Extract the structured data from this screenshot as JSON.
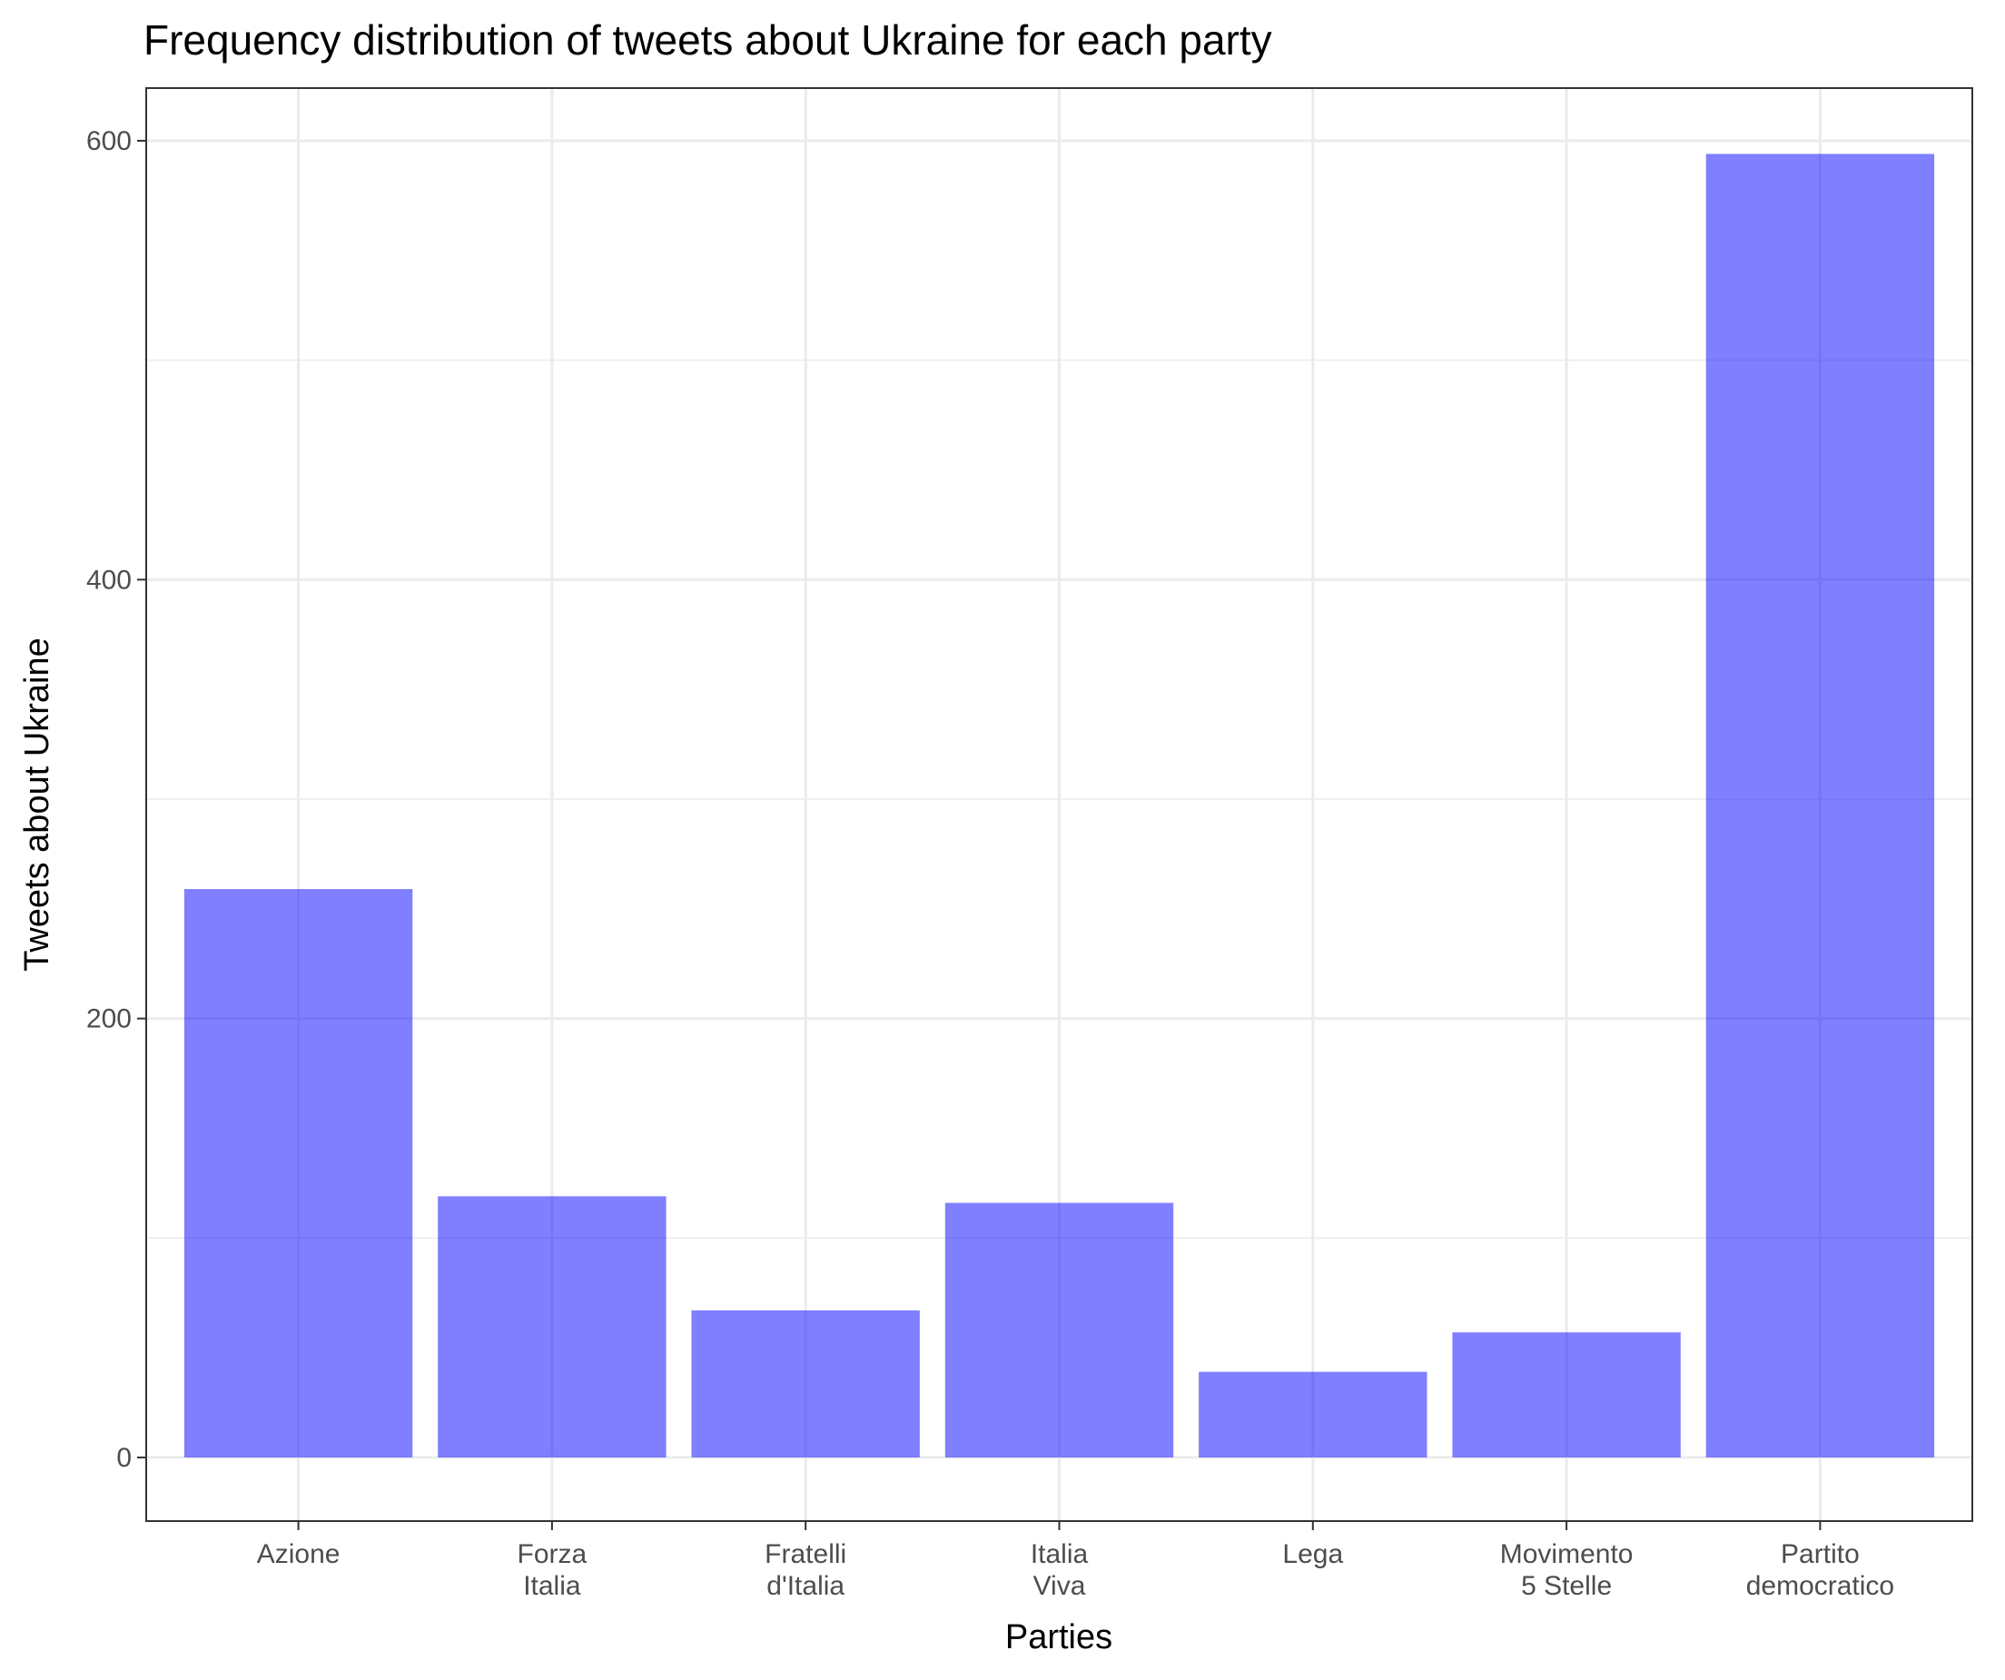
{
  "chart_data": {
    "type": "bar",
    "title": "Frequency distribution of tweets about Ukraine for each party",
    "xlabel": "Parties",
    "ylabel": "Tweets about Ukraine",
    "categories": [
      [
        "Azione"
      ],
      [
        "Forza",
        "Italia"
      ],
      [
        "Fratelli",
        "d'Italia"
      ],
      [
        "Italia",
        "Viva"
      ],
      [
        "Lega"
      ],
      [
        "Movimento",
        "5 Stelle"
      ],
      [
        "Partito",
        "democratico"
      ]
    ],
    "values": [
      259,
      119,
      67,
      116,
      39,
      57,
      594
    ],
    "ylim": [
      -29,
      624
    ],
    "yticks": [
      0,
      200,
      400,
      600
    ],
    "yminor": [
      100,
      300,
      500
    ],
    "grid": true,
    "legend": "none",
    "bar_color": "#0000ff",
    "bar_opacity": 0.5,
    "grid_color": "#ebebeb",
    "axis_color": "#333333"
  }
}
